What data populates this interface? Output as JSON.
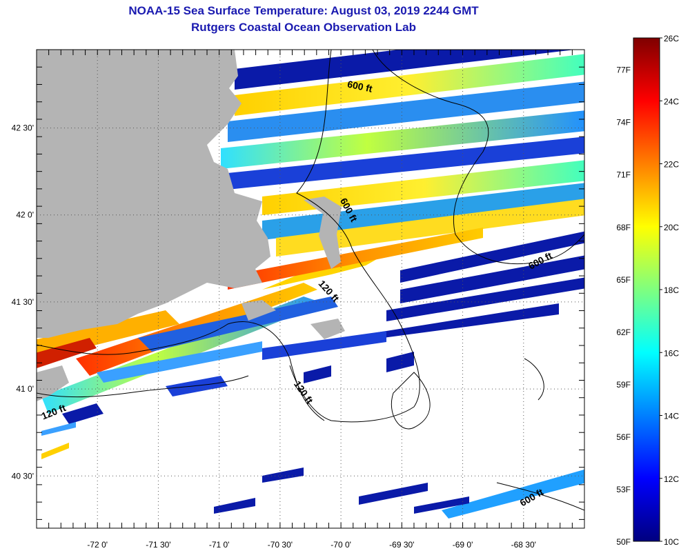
{
  "title": {
    "line1": "NOAA-15 Sea Surface Temperature:  August 03, 2019 2244 GMT",
    "line2": "Rutgers Coastal Ocean Observation Lab"
  },
  "map": {
    "lon_range": [
      -72.5,
      -68.0
    ],
    "lat_range": [
      40.2,
      42.95
    ],
    "lon_ticks": [
      {
        "value": -72.0,
        "label": "-72 0'"
      },
      {
        "value": -71.5,
        "label": "-71 30'"
      },
      {
        "value": -71.0,
        "label": "-71 0'"
      },
      {
        "value": -70.5,
        "label": "-70 30'"
      },
      {
        "value": -70.0,
        "label": "-70 0'"
      },
      {
        "value": -69.5,
        "label": "-69 30'"
      },
      {
        "value": -69.0,
        "label": "-69 0'"
      },
      {
        "value": -68.5,
        "label": "-68 30'"
      }
    ],
    "lat_ticks": [
      {
        "value": 42.5,
        "label": "42 30'"
      },
      {
        "value": 42.0,
        "label": "42 0'"
      },
      {
        "value": 41.5,
        "label": "41 30'"
      },
      {
        "value": 41.0,
        "label": "41 0'"
      },
      {
        "value": 40.5,
        "label": "40 30'"
      }
    ],
    "contour_labels": [
      {
        "text": "600 ft",
        "lon": -69.85,
        "lat": 42.72,
        "angle": 12
      },
      {
        "text": "600 ft",
        "lon": -69.96,
        "lat": 42.02,
        "angle": 62
      },
      {
        "text": "600 ft",
        "lon": -68.35,
        "lat": 41.72,
        "angle": -28
      },
      {
        "text": "120 ft",
        "lon": -70.12,
        "lat": 41.55,
        "angle": 48
      },
      {
        "text": "120 ft",
        "lon": -70.33,
        "lat": 40.97,
        "angle": 55
      },
      {
        "text": "120 ft",
        "lon": -72.35,
        "lat": 40.85,
        "angle": -22
      },
      {
        "text": "600 ft",
        "lon": -68.42,
        "lat": 40.36,
        "angle": -30
      }
    ],
    "colors": {
      "land": "#b4b4b4",
      "ocean_nodata": "#ffffff",
      "grid": "#555555"
    }
  },
  "colorbar": {
    "min_c": 10,
    "max_c": 26,
    "colormap": "jet",
    "celsius_labels": [
      "26C",
      "24C",
      "22C",
      "20C",
      "18C",
      "16C",
      "14C",
      "12C",
      "10C"
    ],
    "fahrenheit_labels": [
      "77F",
      "74F",
      "71F",
      "68F",
      "65F",
      "62F",
      "59F",
      "56F",
      "53F",
      "50F"
    ]
  }
}
